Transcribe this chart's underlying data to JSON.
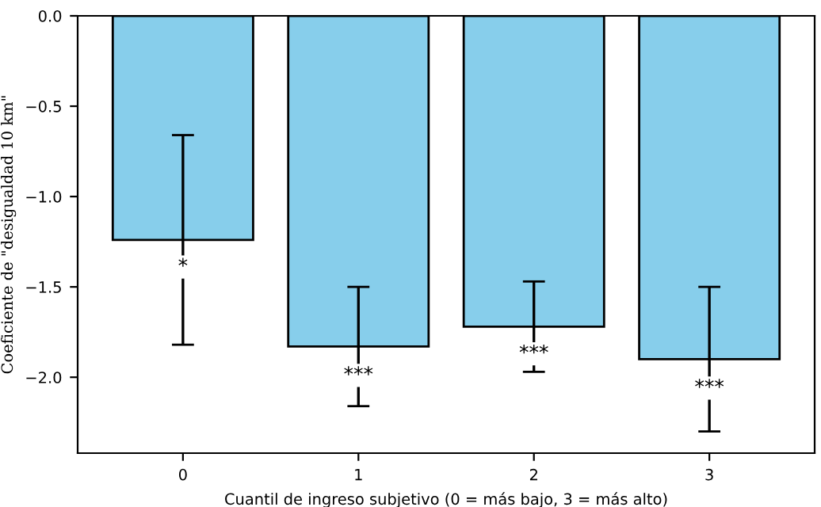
{
  "chart_data": {
    "type": "bar",
    "xlabel": "Cuantil de ingreso subjetivo (0 = más bajo, 3 = más alto)",
    "ylabel": "Coeficiente de \"desigualdad 10 km\"",
    "categories": [
      "0",
      "1",
      "2",
      "3"
    ],
    "series": [
      {
        "color": "#87ceeb",
        "values": [
          -1.24,
          -1.83,
          -1.72,
          -1.9
        ],
        "errors": [
          0.58,
          0.33,
          0.25,
          0.4
        ]
      }
    ],
    "ylim": [
      -2.42,
      0
    ],
    "yticks": [
      {
        "value": 0,
        "label": "0.0"
      },
      {
        "value": -0.5,
        "label": "−0.5"
      },
      {
        "value": -1.0,
        "label": "−1.0"
      },
      {
        "value": -1.5,
        "label": "−1.5"
      },
      {
        "value": -2.0,
        "label": "−2.0"
      }
    ],
    "annotations": [
      {
        "text": "*",
        "x": "0",
        "y": -1.39
      },
      {
        "text": "***",
        "x": "1",
        "y": -1.99
      },
      {
        "text": "***",
        "x": "2",
        "y": -1.87
      },
      {
        "text": "***",
        "x": "3",
        "y": -2.06
      }
    ],
    "grid": false
  }
}
